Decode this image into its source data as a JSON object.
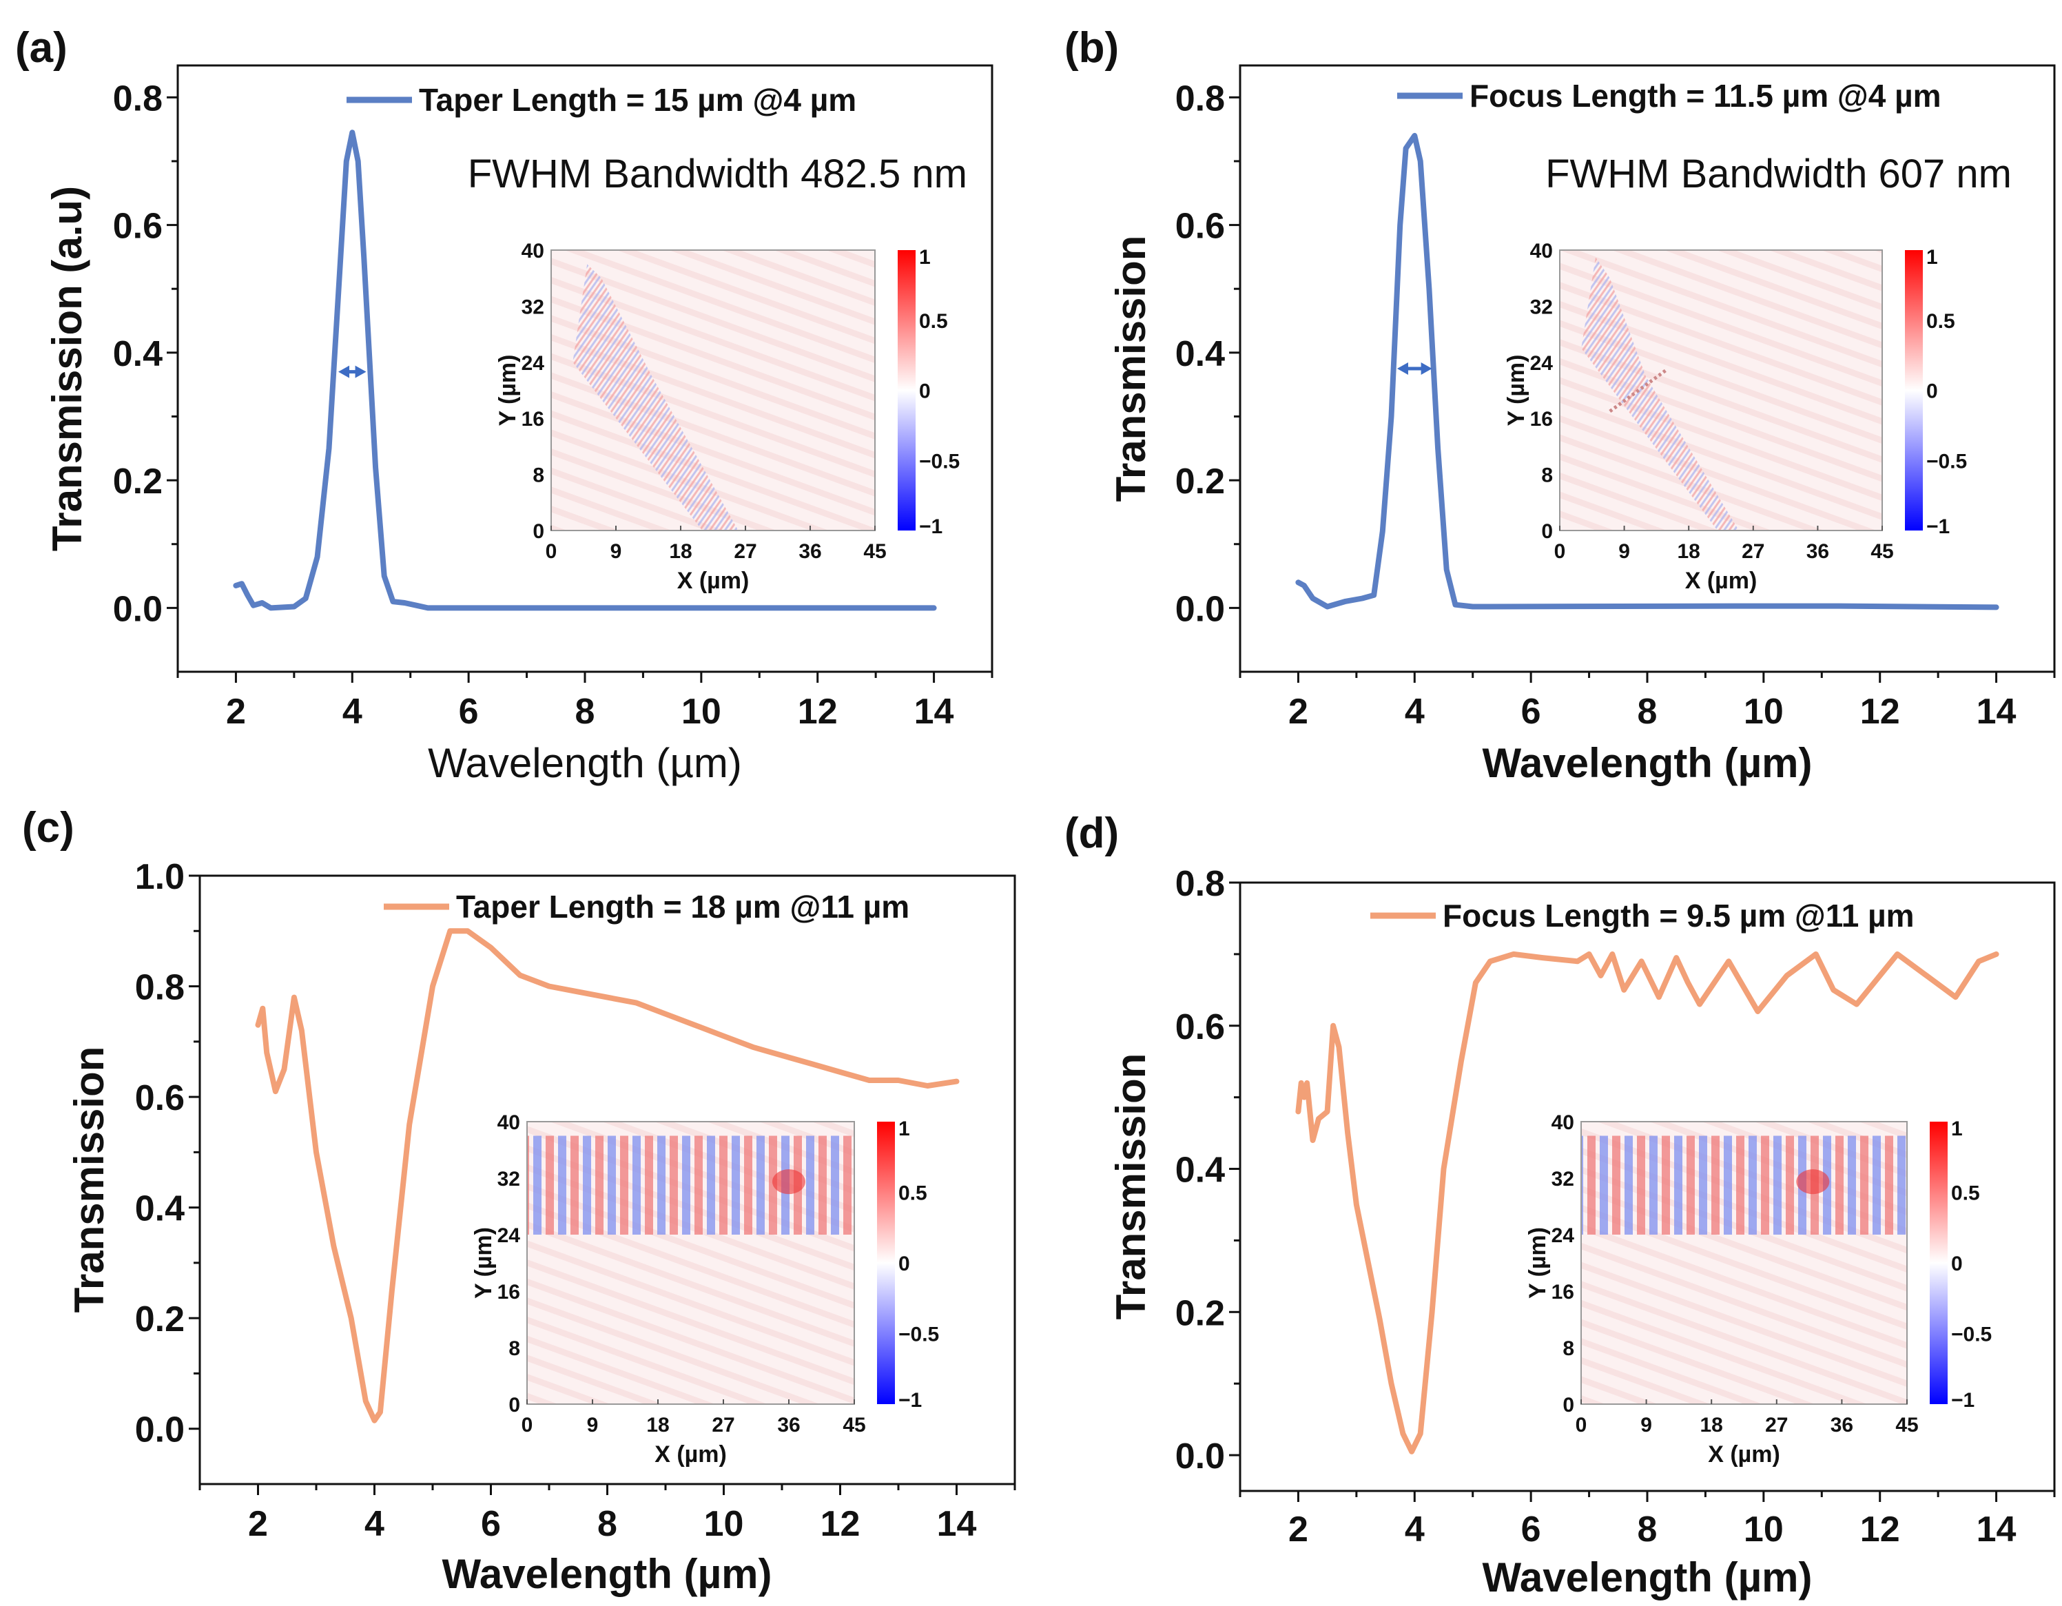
{
  "colors": {
    "blue_series": "#5b7fc4",
    "orange_series": "#f2a077",
    "heat_red": "#ff0000",
    "heat_blue": "#0000ff",
    "heat_bg": "#fbeeee"
  },
  "chart_data": [
    {
      "panel_label": "(a)",
      "type": "line",
      "xlabel": "Wavelength (µm)",
      "ylabel": "Transmission (a.u)",
      "xlim": [
        1,
        15
      ],
      "ylim": [
        -0.1,
        0.85
      ],
      "xticks": [
        2,
        4,
        6,
        8,
        10,
        12,
        14
      ],
      "yticks": [
        0.0,
        0.2,
        0.4,
        0.6,
        0.8
      ],
      "legend": "Taper Length = 15 µm @4 µm",
      "legend_position": "top-right",
      "annotation": "FWHM Bandwidth 482.5 nm",
      "fwhm_arrow": {
        "y": 0.37,
        "x_from": 3.76,
        "x_to": 4.24
      },
      "series": [
        {
          "name": "Taper Length = 15 µm @4 µm",
          "color": "#5b7fc4",
          "points": [
            [
              2,
              0.035
            ],
            [
              2.1,
              0.038
            ],
            [
              2.2,
              0.02
            ],
            [
              2.3,
              0.004
            ],
            [
              2.45,
              0.008
            ],
            [
              2.6,
              0.0
            ],
            [
              3.0,
              0.002
            ],
            [
              3.2,
              0.015
            ],
            [
              3.4,
              0.08
            ],
            [
              3.6,
              0.25
            ],
            [
              3.8,
              0.55
            ],
            [
              3.9,
              0.7
            ],
            [
              4.0,
              0.745
            ],
            [
              4.1,
              0.7
            ],
            [
              4.2,
              0.55
            ],
            [
              4.4,
              0.22
            ],
            [
              4.55,
              0.05
            ],
            [
              4.7,
              0.01
            ],
            [
              4.9,
              0.008
            ],
            [
              5.1,
              0.004
            ],
            [
              5.3,
              0.0
            ],
            [
              14,
              0.0
            ]
          ]
        }
      ],
      "inset": {
        "xlabel": "X (µm)",
        "ylabel": "Y (µm)",
        "xticks": [
          0,
          9,
          18,
          27,
          36,
          45
        ],
        "yticks": [
          0,
          8,
          16,
          24,
          32,
          40
        ],
        "colorbar_ticks": [
          "1",
          "0.5",
          "0",
          "−0.5",
          "−1"
        ],
        "colorbar_range": [
          -1,
          1
        ],
        "beam": "diagonal-a"
      }
    },
    {
      "panel_label": "(b)",
      "type": "line",
      "xlabel": "Wavelength (µm)",
      "ylabel": "Transmission",
      "xlim": [
        1,
        15
      ],
      "ylim": [
        -0.1,
        0.85
      ],
      "xticks": [
        2,
        4,
        6,
        8,
        10,
        12,
        14
      ],
      "yticks": [
        0.0,
        0.2,
        0.4,
        0.6,
        0.8
      ],
      "legend": "Focus Length = 11.5 µm @4 µm",
      "legend_position": "top-right",
      "annotation": "FWHM Bandwidth 607 nm",
      "fwhm_arrow": {
        "y": 0.375,
        "x_from": 3.7,
        "x_to": 4.3
      },
      "series": [
        {
          "name": "Focus Length = 11.5 µm @4 µm",
          "color": "#5b7fc4",
          "points": [
            [
              2,
              0.04
            ],
            [
              2.1,
              0.035
            ],
            [
              2.25,
              0.015
            ],
            [
              2.5,
              0.002
            ],
            [
              2.8,
              0.01
            ],
            [
              3.1,
              0.015
            ],
            [
              3.3,
              0.02
            ],
            [
              3.45,
              0.12
            ],
            [
              3.6,
              0.3
            ],
            [
              3.75,
              0.6
            ],
            [
              3.85,
              0.72
            ],
            [
              4.0,
              0.74
            ],
            [
              4.1,
              0.7
            ],
            [
              4.25,
              0.5
            ],
            [
              4.4,
              0.25
            ],
            [
              4.55,
              0.06
            ],
            [
              4.7,
              0.005
            ],
            [
              5.0,
              0.002
            ],
            [
              9.5,
              0.003
            ],
            [
              11.3,
              0.003
            ],
            [
              14,
              0.001
            ]
          ]
        }
      ],
      "inset": {
        "xlabel": "X (µm)",
        "ylabel": "Y (µm)",
        "xticks": [
          0,
          9,
          18,
          27,
          36,
          45
        ],
        "yticks": [
          0,
          8,
          16,
          24,
          32,
          40
        ],
        "colorbar_ticks": [
          "1",
          "0.5",
          "0",
          "−0.5",
          "−1"
        ],
        "colorbar_range": [
          -1,
          1
        ],
        "beam": "diagonal-b"
      }
    },
    {
      "panel_label": "(c)",
      "type": "line",
      "xlabel": "Wavelength (µm)",
      "ylabel": "Transmission",
      "xlim": [
        1,
        15
      ],
      "ylim": [
        -0.1,
        1.0
      ],
      "xticks": [
        2,
        4,
        6,
        8,
        10,
        12,
        14
      ],
      "yticks": [
        0.0,
        0.2,
        0.4,
        0.6,
        0.8,
        1.0
      ],
      "legend": "Taper Length = 18 µm @11 µm",
      "legend_position": "top-right",
      "series": [
        {
          "name": "Taper Length = 18 µm @11 µm",
          "color": "#f2a077",
          "points": [
            [
              2,
              0.73
            ],
            [
              2.08,
              0.76
            ],
            [
              2.15,
              0.68
            ],
            [
              2.3,
              0.61
            ],
            [
              2.45,
              0.65
            ],
            [
              2.62,
              0.78
            ],
            [
              2.75,
              0.72
            ],
            [
              3.0,
              0.5
            ],
            [
              3.3,
              0.33
            ],
            [
              3.6,
              0.2
            ],
            [
              3.85,
              0.05
            ],
            [
              4.0,
              0.015
            ],
            [
              4.1,
              0.03
            ],
            [
              4.3,
              0.25
            ],
            [
              4.6,
              0.55
            ],
            [
              5.0,
              0.8
            ],
            [
              5.3,
              0.9
            ],
            [
              5.6,
              0.9
            ],
            [
              6.0,
              0.87
            ],
            [
              6.5,
              0.82
            ],
            [
              7.0,
              0.8
            ],
            [
              7.5,
              0.79
            ],
            [
              8.0,
              0.78
            ],
            [
              8.5,
              0.77
            ],
            [
              9.0,
              0.75
            ],
            [
              9.5,
              0.73
            ],
            [
              10.0,
              0.71
            ],
            [
              10.5,
              0.69
            ],
            [
              11.0,
              0.675
            ],
            [
              11.5,
              0.66
            ],
            [
              12.0,
              0.645
            ],
            [
              12.5,
              0.63
            ],
            [
              13.0,
              0.63
            ],
            [
              13.5,
              0.62
            ],
            [
              14,
              0.628
            ]
          ]
        }
      ],
      "inset": {
        "xlabel": "X (µm)",
        "ylabel": "Y (µm)",
        "xticks": [
          0,
          9,
          18,
          27,
          36,
          45
        ],
        "yticks": [
          0,
          8,
          16,
          24,
          32,
          40
        ],
        "colorbar_ticks": [
          "1",
          "0.5",
          "0",
          "−0.5",
          "−1"
        ],
        "colorbar_range": [
          -1,
          1
        ],
        "beam": "horizontal-c"
      }
    },
    {
      "panel_label": "(d)",
      "type": "line",
      "xlabel": "Wavelength (µm)",
      "ylabel": "Transmission",
      "xlim": [
        1,
        15
      ],
      "ylim": [
        -0.05,
        0.8
      ],
      "xticks": [
        2,
        4,
        6,
        8,
        10,
        12,
        14
      ],
      "yticks": [
        0.0,
        0.2,
        0.4,
        0.6,
        0.8
      ],
      "legend": "Focus Length = 9.5 µm @11 µm",
      "legend_position": "top-right",
      "series": [
        {
          "name": "Focus Length = 9.5 µm @11 µm",
          "color": "#f2a077",
          "points": [
            [
              2,
              0.48
            ],
            [
              2.05,
              0.52
            ],
            [
              2.1,
              0.5
            ],
            [
              2.15,
              0.52
            ],
            [
              2.25,
              0.44
            ],
            [
              2.35,
              0.47
            ],
            [
              2.5,
              0.48
            ],
            [
              2.6,
              0.6
            ],
            [
              2.7,
              0.57
            ],
            [
              2.85,
              0.45
            ],
            [
              3.0,
              0.35
            ],
            [
              3.2,
              0.27
            ],
            [
              3.4,
              0.19
            ],
            [
              3.6,
              0.1
            ],
            [
              3.8,
              0.03
            ],
            [
              3.95,
              0.005
            ],
            [
              4.1,
              0.03
            ],
            [
              4.3,
              0.2
            ],
            [
              4.5,
              0.4
            ],
            [
              4.8,
              0.55
            ],
            [
              5.05,
              0.66
            ],
            [
              5.3,
              0.69
            ],
            [
              5.7,
              0.7
            ],
            [
              6.2,
              0.695
            ],
            [
              6.8,
              0.69
            ],
            [
              7.0,
              0.7
            ],
            [
              7.2,
              0.67
            ],
            [
              7.4,
              0.7
            ],
            [
              7.6,
              0.65
            ],
            [
              7.9,
              0.69
            ],
            [
              8.2,
              0.64
            ],
            [
              8.5,
              0.695
            ],
            [
              8.7,
              0.66
            ],
            [
              8.9,
              0.63
            ],
            [
              9.4,
              0.69
            ],
            [
              9.9,
              0.62
            ],
            [
              10.4,
              0.67
            ],
            [
              10.9,
              0.7
            ],
            [
              11.2,
              0.65
            ],
            [
              11.6,
              0.63
            ],
            [
              12.3,
              0.7
            ],
            [
              12.8,
              0.67
            ],
            [
              13.3,
              0.64
            ],
            [
              13.7,
              0.69
            ],
            [
              14,
              0.7
            ]
          ]
        }
      ],
      "inset": {
        "xlabel": "X (µm)",
        "ylabel": "Y (µm)",
        "xticks": [
          0,
          9,
          18,
          27,
          36,
          45
        ],
        "yticks": [
          0,
          8,
          16,
          24,
          32,
          40
        ],
        "colorbar_ticks": [
          "1",
          "0.5",
          "0",
          "−0.5",
          "−1"
        ],
        "colorbar_range": [
          -1,
          1
        ],
        "beam": "horizontal-d"
      }
    }
  ]
}
